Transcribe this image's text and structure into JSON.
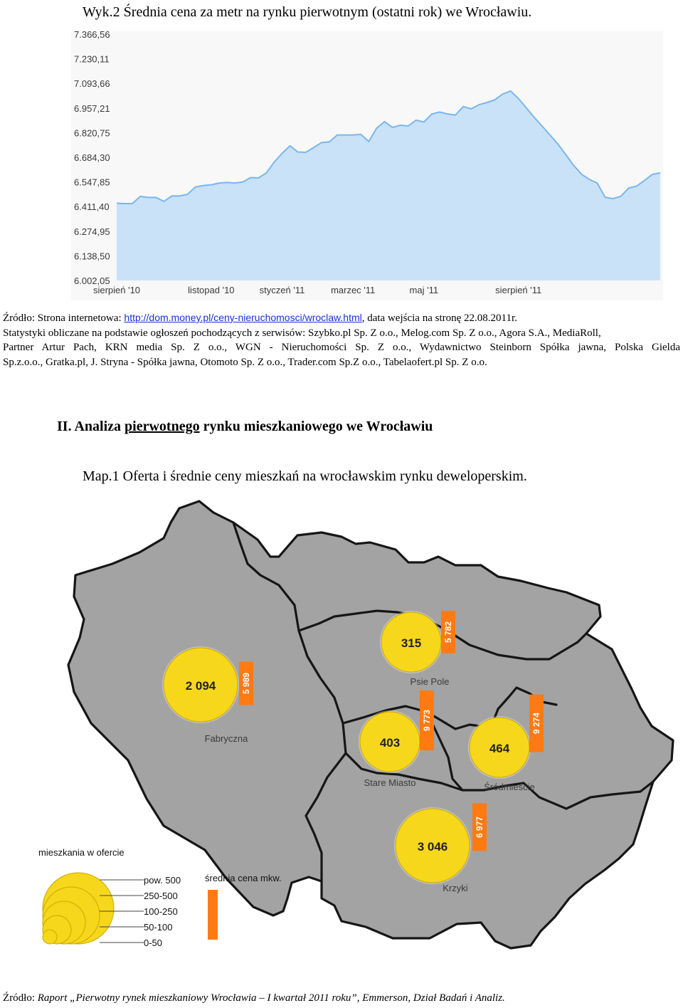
{
  "figure_title": "Wyk.2 Średnia cena za metr na rynku pierwotnym (ostatni rok) we Wrocławiu.",
  "chart_data": {
    "type": "area",
    "y_ticks": [
      "7.366,56",
      "7.230,11",
      "7.093,66",
      "6.957,21",
      "6.820,75",
      "6.684,30",
      "6.547,85",
      "6.411,40",
      "6.274,95",
      "6.138,50",
      "6.002,05"
    ],
    "ylim": [
      6002.05,
      7366.56
    ],
    "x_ticks": [
      "sierpień '10",
      "listopad '10",
      "styczeń '11",
      "marzec '11",
      "maj '11",
      "sierpień '11"
    ],
    "x_tick_index": [
      0,
      12,
      21,
      30,
      39,
      51
    ],
    "values": [
      6430,
      6428,
      6428,
      6468,
      6462,
      6462,
      6440,
      6470,
      6470,
      6480,
      6520,
      6528,
      6532,
      6542,
      6545,
      6542,
      6548,
      6572,
      6570,
      6598,
      6658,
      6706,
      6748,
      6714,
      6712,
      6738,
      6766,
      6770,
      6808,
      6808,
      6808,
      6812,
      6772,
      6846,
      6882,
      6850,
      6862,
      6858,
      6890,
      6880,
      6924,
      6935,
      6925,
      6918,
      6966,
      6953,
      6976,
      6988,
      7003,
      7035,
      7052,
      7010,
      6958,
      6906,
      6858,
      6808,
      6758,
      6700,
      6640,
      6591,
      6562,
      6542,
      6463,
      6455,
      6468,
      6514,
      6525,
      6556,
      6590,
      6598
    ],
    "colors": {
      "fill": "#c9e2f8",
      "line": "#7ab6ec",
      "bg": "#f8f8f8",
      "tick": "#3a3a3a"
    }
  },
  "source": {
    "prefix_words": [
      "Źródło:",
      "Strona",
      "internetowa:"
    ],
    "link": "http://dom.money.pl/ceny-nieruchomosci/wroclaw.html",
    "suffix_words": [
      ",",
      "data",
      "wejścia",
      "na",
      "stronę",
      "22.08.2011r."
    ],
    "lines": [
      "Statystyki obliczane na podstawie ogłoszeń pochodzących z serwisów: Szybko.pl Sp. Z o.o., Melog.com Sp. Z o.o., Agora S.A., MediaRoll,",
      "Partner Artur Pach, KRN media Sp. Z o.o., WGN - Nieruchomości Sp. Z o.o., Wydawnictwo Steinborn Spółka jawna, Polska Gielda",
      "Sp.z.o.o., Gratka.pl, J. Stryna - Spółka jawna, Otomoto Sp. Z o.o., Trader.com Sp.Z o.o., Tabelaofert.pl Sp. Z o.o."
    ]
  },
  "section_heading": {
    "number": "II.",
    "pre": "Analiza",
    "underlined": "pierwotnego",
    "post": "rynku mieszkaniowego we Wrocławiu"
  },
  "map": {
    "title": "Map.1 Oferta  i średnie ceny mieszkań na wrocławskim rynku deweloperskim.",
    "districts": [
      {
        "name": "Fabryczna",
        "offers": "2 094",
        "avg_price": "5 989",
        "offers_num": 2094,
        "price_num": 5989
      },
      {
        "name": "Psie Pole",
        "offers": "315",
        "avg_price": "5 782",
        "offers_num": 315,
        "price_num": 5782
      },
      {
        "name": "Stare Miasto",
        "offers": "403",
        "avg_price": "9 773",
        "offers_num": 403,
        "price_num": 9773
      },
      {
        "name": "Śródmieście",
        "offers": "464",
        "avg_price": "9 274",
        "offers_num": 464,
        "price_num": 9274
      },
      {
        "name": "Krzyki",
        "offers": "3 046",
        "avg_price": "6 977",
        "offers_num": 3046,
        "price_num": 6977
      }
    ],
    "legend": {
      "offers_title": "mieszkania w ofercie",
      "offers_ranges": [
        "pow. 500",
        "250-500",
        "100-250",
        "50-100",
        "0-50"
      ],
      "price_title": "średnia cena mkw."
    },
    "colors": {
      "land": "#a3a3a3",
      "border": "#161616",
      "circle": "#f6d71c",
      "circle_edge": "#c9a800",
      "bar": "#ff7a12",
      "label": "#222222"
    }
  },
  "footer": {
    "prefix": "Źródło:",
    "text": "Raport „Pierwotny rynek mieszkaniowy Wrocławia – I kwartał 2011 roku”, Emmerson, Dział Badań i Analiz."
  }
}
